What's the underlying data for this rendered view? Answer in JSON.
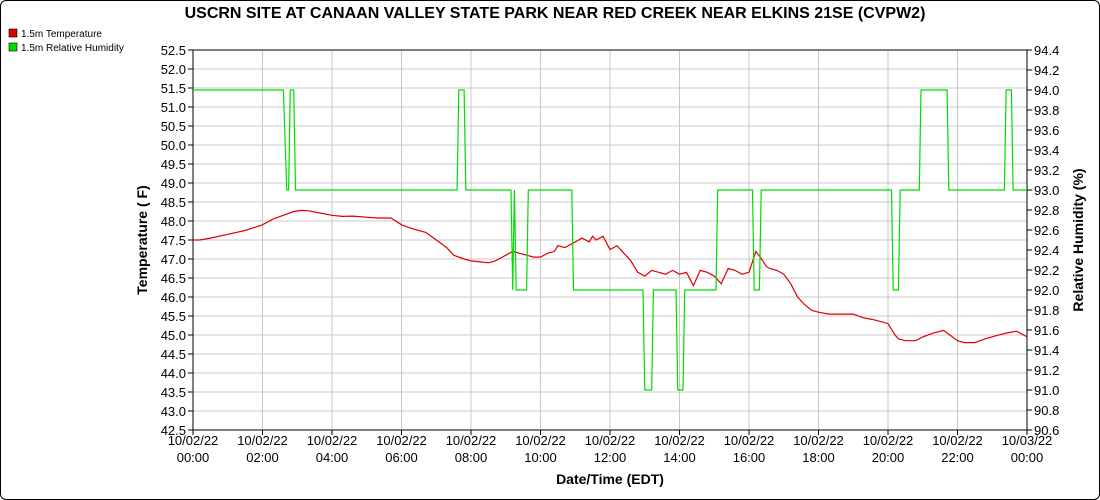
{
  "chart_data": {
    "type": "line",
    "title": "USCRN SITE AT CANAAN VALLEY STATE PARK NEAR RED CREEK NEAR ELKINS 21SE (CVPW2)",
    "xlabel": "Date/Time (EDT)",
    "ylabel_left": "Temperature ( F)",
    "ylabel_right": "Relative Humidity (%)",
    "x_ticks": [
      {
        "hour": 0,
        "date": "10/02/22",
        "time": "00:00"
      },
      {
        "hour": 2,
        "date": "10/02/22",
        "time": "02:00"
      },
      {
        "hour": 4,
        "date": "10/02/22",
        "time": "04:00"
      },
      {
        "hour": 6,
        "date": "10/02/22",
        "time": "06:00"
      },
      {
        "hour": 8,
        "date": "10/02/22",
        "time": "08:00"
      },
      {
        "hour": 10,
        "date": "10/02/22",
        "time": "10:00"
      },
      {
        "hour": 12,
        "date": "10/02/22",
        "time": "12:00"
      },
      {
        "hour": 14,
        "date": "10/02/22",
        "time": "14:00"
      },
      {
        "hour": 16,
        "date": "10/02/22",
        "time": "16:00"
      },
      {
        "hour": 18,
        "date": "10/02/22",
        "time": "18:00"
      },
      {
        "hour": 20,
        "date": "10/02/22",
        "time": "20:00"
      },
      {
        "hour": 22,
        "date": "10/02/22",
        "time": "22:00"
      },
      {
        "hour": 24,
        "date": "10/03/22",
        "time": "00:00"
      }
    ],
    "xlim": [
      0,
      24
    ],
    "y_left_lim": [
      42.5,
      52.5
    ],
    "y_left_ticks": [
      "52.5",
      "52.0",
      "51.5",
      "51.0",
      "50.5",
      "50.0",
      "49.5",
      "49.0",
      "48.5",
      "48.0",
      "47.5",
      "47.0",
      "46.5",
      "46.0",
      "45.5",
      "45.0",
      "44.5",
      "44.0",
      "43.5",
      "43.0",
      "42.5"
    ],
    "y_right_lim": [
      90.6,
      94.4
    ],
    "y_right_ticks": [
      "94.4",
      "94.2",
      "94.0",
      "93.8",
      "93.6",
      "93.4",
      "93.2",
      "93.0",
      "92.8",
      "92.6",
      "92.4",
      "92.2",
      "92.0",
      "91.8",
      "91.6",
      "91.4",
      "91.2",
      "91.0",
      "90.8",
      "90.6"
    ],
    "grid": true,
    "legend_position": "top-left",
    "series": [
      {
        "name": "1.5m Temperature",
        "color": "#dd0000",
        "axis": "left",
        "x": [
          0.0,
          0.2,
          0.5,
          1.0,
          1.5,
          2.0,
          2.3,
          2.6,
          2.9,
          3.1,
          3.3,
          3.6,
          4.0,
          4.3,
          4.6,
          5.0,
          5.3,
          5.7,
          6.0,
          6.3,
          6.7,
          7.0,
          7.3,
          7.5,
          7.8,
          8.0,
          8.3,
          8.5,
          8.7,
          8.9,
          9.0,
          9.2,
          9.4,
          9.6,
          9.8,
          10.0,
          10.2,
          10.4,
          10.5,
          10.7,
          10.9,
          11.0,
          11.2,
          11.4,
          11.5,
          11.6,
          11.8,
          12.0,
          12.2,
          12.4,
          12.6,
          12.8,
          13.0,
          13.2,
          13.4,
          13.6,
          13.8,
          14.0,
          14.2,
          14.4,
          14.6,
          14.8,
          15.0,
          15.2,
          15.4,
          15.6,
          15.8,
          16.0,
          16.2,
          16.4,
          16.5,
          16.6,
          16.8,
          17.0,
          17.2,
          17.4,
          17.6,
          17.8,
          18.0,
          18.3,
          18.6,
          19.0,
          19.3,
          19.6,
          20.0,
          20.2,
          20.3,
          20.5,
          20.8,
          21.0,
          21.3,
          21.6,
          22.0,
          22.2,
          22.5,
          22.8,
          23.1,
          23.4,
          23.7,
          24.0
        ],
        "values": [
          47.5,
          47.5,
          47.55,
          47.65,
          47.75,
          47.9,
          48.05,
          48.15,
          48.25,
          48.28,
          48.27,
          48.22,
          48.15,
          48.12,
          48.13,
          48.1,
          48.08,
          48.08,
          47.9,
          47.8,
          47.7,
          47.5,
          47.3,
          47.1,
          47.0,
          46.95,
          46.92,
          46.9,
          46.95,
          47.05,
          47.1,
          47.2,
          47.15,
          47.1,
          47.05,
          47.05,
          47.15,
          47.2,
          47.35,
          47.3,
          47.4,
          47.45,
          47.55,
          47.45,
          47.6,
          47.5,
          47.6,
          47.25,
          47.35,
          47.15,
          46.95,
          46.65,
          46.55,
          46.7,
          46.65,
          46.6,
          46.7,
          46.6,
          46.65,
          46.3,
          46.7,
          46.65,
          46.55,
          46.35,
          46.75,
          46.7,
          46.6,
          46.65,
          47.2,
          46.95,
          46.8,
          46.75,
          46.7,
          46.6,
          46.35,
          46.0,
          45.8,
          45.65,
          45.6,
          45.55,
          45.55,
          45.55,
          45.45,
          45.4,
          45.3,
          45.0,
          44.9,
          44.85,
          44.85,
          44.95,
          45.05,
          45.12,
          44.85,
          44.8,
          44.8,
          44.9,
          44.98,
          45.05,
          45.1,
          44.95
        ]
      },
      {
        "name": "1.5m Relative Humidity",
        "color": "#00dd00",
        "axis": "right",
        "x": [
          0.0,
          2.6,
          2.7,
          2.75,
          2.8,
          2.9,
          2.95,
          3.0,
          7.6,
          7.65,
          7.8,
          7.85,
          8.0,
          9.15,
          9.2,
          9.25,
          9.3,
          9.35,
          9.6,
          9.65,
          9.8,
          9.85,
          10.9,
          10.95,
          12.95,
          13.0,
          13.2,
          13.25,
          13.35,
          13.4,
          13.9,
          13.95,
          14.1,
          14.15,
          15.05,
          15.1,
          16.1,
          16.15,
          16.3,
          16.35,
          20.1,
          20.15,
          20.3,
          20.35,
          20.9,
          20.95,
          21.7,
          21.75,
          22.0,
          22.05,
          23.35,
          23.4,
          23.55,
          23.6,
          24.0
        ],
        "values": [
          94.0,
          94.0,
          93.0,
          93.0,
          94.0,
          94.0,
          93.0,
          93.0,
          93.0,
          94.0,
          94.0,
          93.0,
          93.0,
          93.0,
          92.0,
          93.0,
          92.0,
          92.0,
          92.0,
          93.0,
          93.0,
          93.0,
          93.0,
          92.0,
          92.0,
          91.0,
          91.0,
          92.0,
          92.0,
          92.0,
          92.0,
          91.0,
          91.0,
          92.0,
          92.0,
          93.0,
          93.0,
          92.0,
          92.0,
          93.0,
          93.0,
          92.0,
          92.0,
          93.0,
          93.0,
          94.0,
          94.0,
          93.0,
          93.0,
          93.0,
          93.0,
          94.0,
          94.0,
          93.0,
          93.0
        ]
      }
    ]
  }
}
